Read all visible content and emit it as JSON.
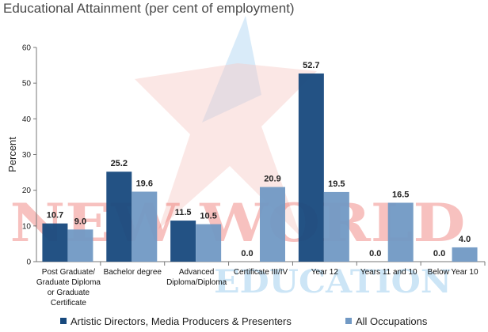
{
  "chart_data": {
    "type": "bar",
    "title": "Educational Attainment (per cent of employment)",
    "ylabel": "Percent",
    "xlabel": "",
    "ylim": [
      0,
      60
    ],
    "yticks": [
      0,
      10,
      20,
      30,
      40,
      50,
      60
    ],
    "categories": [
      [
        "Post Graduate/",
        "Graduate Diploma",
        "or Graduate",
        "Certificate"
      ],
      [
        "Bachelor degree"
      ],
      [
        "Advanced",
        "Diploma/Diploma"
      ],
      [
        "Certificate III/IV"
      ],
      [
        "Year 12"
      ],
      [
        "Years 11 and 10"
      ],
      [
        "Below Year 10"
      ]
    ],
    "series": [
      {
        "name": "Artistic Directors, Media Producers & Presenters",
        "color": "#17497d",
        "values": [
          10.7,
          25.2,
          11.5,
          0.0,
          52.7,
          0.0,
          0.0
        ],
        "labels": [
          "10.7",
          "25.2",
          "11.5",
          "0.0",
          "52.7",
          "0.0",
          "0.0"
        ]
      },
      {
        "name": "All Occupations",
        "color": "#7199c4",
        "values": [
          9.0,
          19.6,
          10.5,
          20.9,
          19.5,
          16.5,
          4.0
        ],
        "labels": [
          "9.0",
          "19.6",
          "10.5",
          "20.9",
          "19.5",
          "16.5",
          "4.0"
        ]
      }
    ],
    "grid": false,
    "legend_position": "bottom"
  },
  "watermark": {
    "line1": "NEW WORLD",
    "line2": "EDUCATION",
    "red": "#e8423a",
    "blue": "#4aa3e0"
  }
}
